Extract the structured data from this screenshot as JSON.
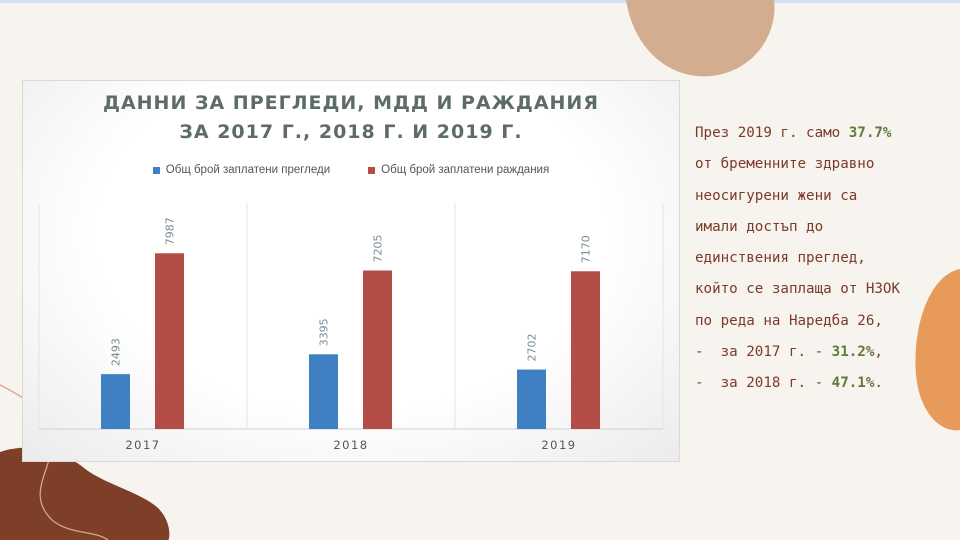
{
  "slide": {
    "text_lines": [
      {
        "parts": [
          {
            "t": "През 2019 г. само "
          },
          {
            "t": "37.7%",
            "hl": true
          }
        ]
      },
      {
        "parts": [
          {
            "t": "от бременните здравно"
          }
        ]
      },
      {
        "parts": [
          {
            "t": "неосигурени жени са"
          }
        ]
      },
      {
        "parts": [
          {
            "t": "имали достъп до"
          }
        ]
      },
      {
        "parts": [
          {
            "t": "единствения преглед,"
          }
        ]
      },
      {
        "parts": [
          {
            "t": "който се заплаща от НЗОК"
          }
        ]
      },
      {
        "parts": [
          {
            "t": "по реда на Наредба 26,"
          }
        ]
      },
      {
        "parts": [
          {
            "t": "-  за 2017 г. - "
          },
          {
            "t": "31.2%",
            "hl": true
          },
          {
            "t": ","
          }
        ]
      },
      {
        "parts": [
          {
            "t": "-  за 2018 г. - "
          },
          {
            "t": "47.1%",
            "hl": true
          },
          {
            "t": "."
          }
        ]
      }
    ],
    "colors": {
      "background": "#f7f3ee",
      "text": "#7b3b28",
      "highlight": "#5f7a3a",
      "blob_tan": "#d3ad90",
      "blob_orange": "#e89a5a",
      "blob_brown": "#7d3f28"
    }
  },
  "chart_data": {
    "type": "bar",
    "title_lines": [
      "ДАННИ ЗА ПРЕГЛЕДИ, МДД И РАЖДАНИЯ",
      "ЗА 2017 Г., 2018 Г. И 2019 Г."
    ],
    "categories": [
      "2017",
      "2018",
      "2019"
    ],
    "series": [
      {
        "name": "Общ брой заплатени прегледи",
        "values": [
          2493,
          3395,
          2702
        ],
        "color": "#3e80c1"
      },
      {
        "name": "Общ брой заплатени раждания",
        "values": [
          7987,
          7205,
          7170
        ],
        "color": "#b24e45"
      }
    ],
    "ylim": [
      0,
      10000
    ],
    "grid": false,
    "legend": "top",
    "data_labels": true
  }
}
